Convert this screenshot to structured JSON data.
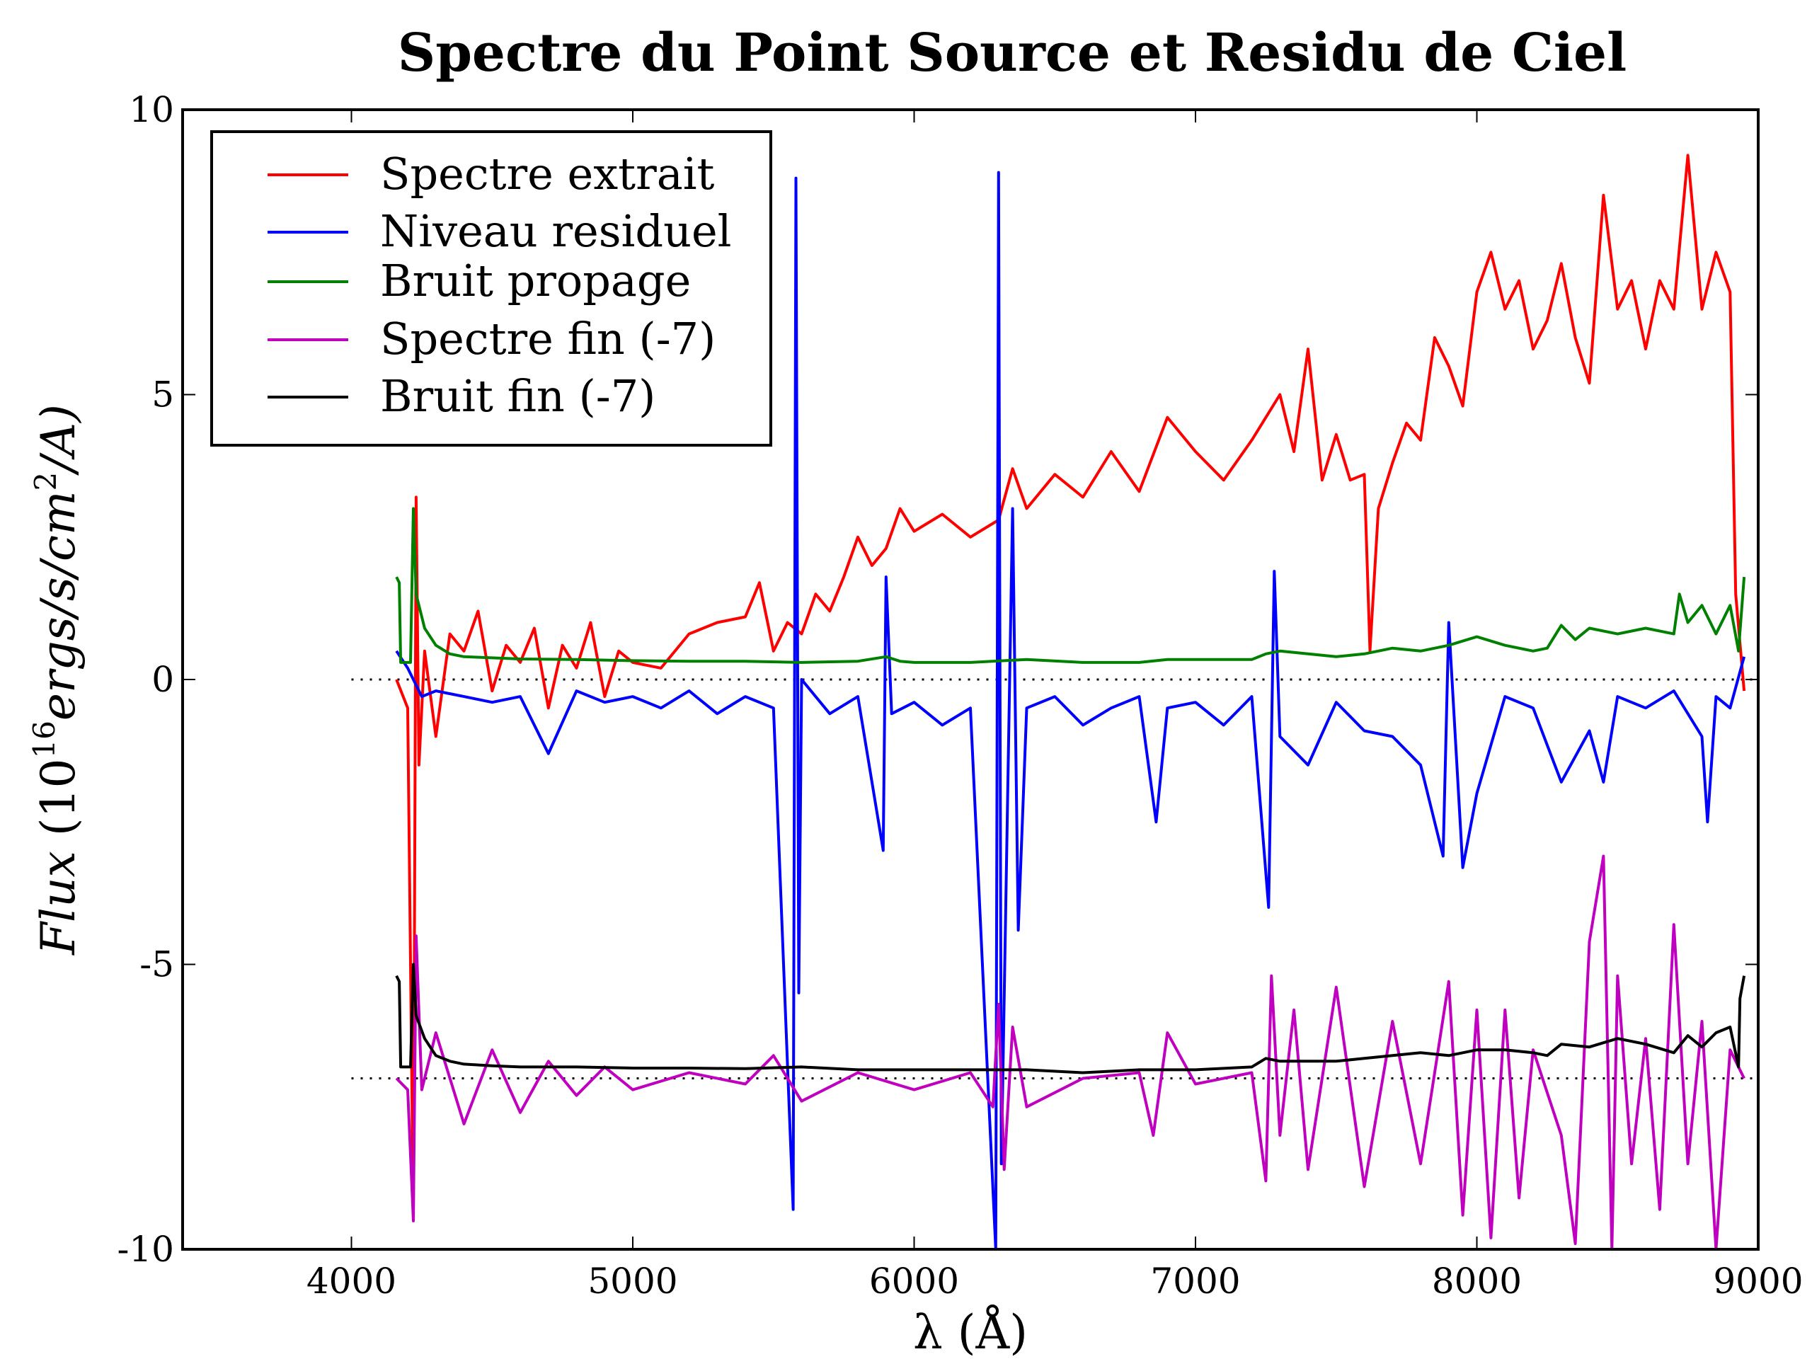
{
  "chart_data": {
    "type": "line",
    "title": "Spectre du Point Source et Residu de Ciel",
    "xlabel": "λ (Å)",
    "ylabel": "Flux (10^16 ergs/s/cm^2/A)",
    "xlim": [
      3400,
      9000
    ],
    "ylim": [
      -10,
      10
    ],
    "xticks": [
      4000,
      5000,
      6000,
      7000,
      8000,
      9000
    ],
    "yticks": [
      -10,
      -5,
      0,
      5,
      10
    ],
    "ytick_labels": [
      "-10",
      "-5",
      "0",
      "5",
      "10"
    ],
    "grid": false,
    "legend_position": "upper left",
    "reference_lines": [
      {
        "y": 0,
        "x_range": [
          4000,
          9000
        ],
        "style": "dotted",
        "color": "#000000"
      },
      {
        "y": -7,
        "x_range": [
          4000,
          9000
        ],
        "style": "dotted",
        "color": "#000000"
      }
    ],
    "series": [
      {
        "name": "Spectre extrait",
        "color": "#ff0000",
        "x": [
          4160,
          4200,
          4220,
          4230,
          4240,
          4260,
          4300,
          4350,
          4400,
          4450,
          4500,
          4550,
          4600,
          4650,
          4700,
          4750,
          4800,
          4850,
          4900,
          4950,
          5000,
          5100,
          5200,
          5300,
          5400,
          5450,
          5500,
          5550,
          5600,
          5650,
          5700,
          5750,
          5800,
          5850,
          5900,
          5950,
          6000,
          6100,
          6200,
          6300,
          6350,
          6400,
          6500,
          6600,
          6700,
          6800,
          6900,
          7000,
          7100,
          7200,
          7300,
          7350,
          7400,
          7450,
          7500,
          7550,
          7600,
          7620,
          7650,
          7700,
          7750,
          7800,
          7850,
          7900,
          7950,
          8000,
          8050,
          8100,
          8150,
          8200,
          8250,
          8300,
          8350,
          8400,
          8450,
          8500,
          8550,
          8600,
          8650,
          8700,
          8750,
          8800,
          8850,
          8900,
          8920,
          8950
        ],
        "values": [
          0,
          -0.5,
          -9.5,
          3.2,
          -1.5,
          0.5,
          -1.0,
          0.8,
          0.5,
          1.2,
          -0.2,
          0.6,
          0.3,
          0.9,
          -0.5,
          0.6,
          0.2,
          1.0,
          -0.3,
          0.5,
          0.3,
          0.2,
          0.8,
          1.0,
          1.1,
          1.7,
          0.5,
          1.0,
          0.8,
          1.5,
          1.2,
          1.8,
          2.5,
          2.0,
          2.3,
          3.0,
          2.6,
          2.9,
          2.5,
          2.8,
          3.7,
          3.0,
          3.6,
          3.2,
          4.0,
          3.3,
          4.6,
          4.0,
          3.5,
          4.2,
          5.0,
          4.0,
          5.8,
          3.5,
          4.3,
          3.5,
          3.6,
          0.5,
          3.0,
          3.8,
          4.5,
          4.2,
          6.0,
          5.5,
          4.8,
          6.8,
          7.5,
          6.5,
          7.0,
          5.8,
          6.3,
          7.3,
          6.0,
          5.2,
          8.5,
          6.5,
          7.0,
          5.8,
          7.0,
          6.5,
          9.2,
          6.5,
          7.5,
          6.8,
          1.5,
          -0.2
        ]
      },
      {
        "name": "Niveau residuel",
        "color": "#0000ff",
        "x": [
          4160,
          4200,
          4250,
          4300,
          4400,
          4500,
          4600,
          4700,
          4800,
          4900,
          5000,
          5100,
          5200,
          5300,
          5400,
          5500,
          5570,
          5580,
          5590,
          5600,
          5700,
          5800,
          5890,
          5900,
          5920,
          6000,
          6100,
          6200,
          6290,
          6300,
          6310,
          6350,
          6370,
          6400,
          6500,
          6600,
          6700,
          6800,
          6860,
          6900,
          7000,
          7100,
          7200,
          7260,
          7280,
          7300,
          7400,
          7500,
          7600,
          7700,
          7800,
          7880,
          7900,
          7950,
          8000,
          8100,
          8200,
          8300,
          8400,
          8450,
          8500,
          8600,
          8700,
          8800,
          8820,
          8850,
          8900,
          8950
        ],
        "values": [
          0.5,
          0.2,
          -0.3,
          -0.2,
          -0.3,
          -0.4,
          -0.3,
          -1.3,
          -0.2,
          -0.4,
          -0.3,
          -0.5,
          -0.2,
          -0.6,
          -0.3,
          -0.5,
          -9.3,
          8.8,
          -5.5,
          0,
          -0.6,
          -0.3,
          -3.0,
          1.8,
          -0.6,
          -0.4,
          -0.8,
          -0.5,
          -10,
          8.9,
          -8.5,
          3.0,
          -4.4,
          -0.5,
          -0.3,
          -0.8,
          -0.5,
          -0.3,
          -2.5,
          -0.5,
          -0.4,
          -0.8,
          -0.3,
          -4.0,
          1.9,
          -1.0,
          -1.5,
          -0.4,
          -0.9,
          -1.0,
          -1.5,
          -3.1,
          1.0,
          -3.3,
          -2.0,
          -0.3,
          -0.5,
          -1.8,
          -0.9,
          -1.8,
          -0.3,
          -0.5,
          -0.2,
          -1.0,
          -2.5,
          -0.3,
          -0.5,
          0.4
        ]
      },
      {
        "name": "Bruit propage",
        "color": "#008000",
        "x": [
          4160,
          4170,
          4175,
          4210,
          4220,
          4230,
          4260,
          4300,
          4350,
          4400,
          4500,
          4600,
          4800,
          5000,
          5200,
          5400,
          5600,
          5800,
          5900,
          5950,
          6000,
          6200,
          6400,
          6600,
          6800,
          6900,
          7000,
          7200,
          7250,
          7300,
          7400,
          7500,
          7600,
          7700,
          7800,
          7900,
          8000,
          8100,
          8200,
          8250,
          8300,
          8350,
          8400,
          8500,
          8600,
          8700,
          8720,
          8750,
          8800,
          8850,
          8900,
          8930,
          8950
        ],
        "values": [
          1.8,
          1.7,
          0.3,
          0.3,
          3.0,
          1.5,
          0.9,
          0.6,
          0.45,
          0.4,
          0.38,
          0.36,
          0.35,
          0.33,
          0.32,
          0.32,
          0.3,
          0.32,
          0.4,
          0.32,
          0.3,
          0.3,
          0.35,
          0.3,
          0.3,
          0.35,
          0.35,
          0.35,
          0.45,
          0.5,
          0.45,
          0.4,
          0.45,
          0.55,
          0.5,
          0.6,
          0.75,
          0.6,
          0.5,
          0.55,
          0.95,
          0.7,
          0.9,
          0.8,
          0.9,
          0.8,
          1.5,
          1.0,
          1.3,
          0.8,
          1.3,
          0.5,
          1.8
        ]
      },
      {
        "name": "Spectre fin (-7)",
        "color": "#bf00bf",
        "x": [
          4160,
          4200,
          4220,
          4230,
          4250,
          4300,
          4400,
          4500,
          4600,
          4700,
          4800,
          4900,
          5000,
          5200,
          5400,
          5500,
          5600,
          5800,
          6000,
          6200,
          6280,
          6300,
          6320,
          6350,
          6400,
          6600,
          6800,
          6850,
          6900,
          7000,
          7200,
          7250,
          7270,
          7300,
          7350,
          7400,
          7500,
          7600,
          7700,
          7800,
          7900,
          7950,
          8000,
          8050,
          8100,
          8150,
          8200,
          8300,
          8350,
          8400,
          8450,
          8480,
          8500,
          8550,
          8600,
          8650,
          8700,
          8750,
          8800,
          8850,
          8900,
          8950
        ],
        "values": [
          -7.0,
          -7.2,
          -9.5,
          -4.5,
          -7.2,
          -6.2,
          -7.8,
          -6.5,
          -7.6,
          -6.7,
          -7.3,
          -6.8,
          -7.2,
          -6.9,
          -7.1,
          -6.6,
          -7.4,
          -6.9,
          -7.2,
          -6.9,
          -7.5,
          -5.7,
          -8.6,
          -6.1,
          -7.5,
          -7.0,
          -6.9,
          -8.0,
          -6.2,
          -7.1,
          -6.9,
          -8.8,
          -5.2,
          -8.0,
          -5.8,
          -8.6,
          -5.4,
          -8.9,
          -6.0,
          -8.5,
          -5.3,
          -9.4,
          -5.8,
          -9.8,
          -5.8,
          -9.1,
          -6.5,
          -8.0,
          -9.9,
          -4.6,
          -3.1,
          -10.0,
          -5.2,
          -8.5,
          -6.3,
          -9.3,
          -4.3,
          -8.5,
          -6.0,
          -10.0,
          -6.5,
          -7.0
        ]
      },
      {
        "name": "Bruit fin (-7)",
        "color": "#000000",
        "x": [
          4160,
          4170,
          4175,
          4210,
          4220,
          4230,
          4260,
          4300,
          4350,
          4400,
          4500,
          4600,
          4800,
          5000,
          5200,
          5400,
          5600,
          5800,
          6000,
          6200,
          6400,
          6600,
          6800,
          7000,
          7200,
          7250,
          7300,
          7400,
          7500,
          7600,
          7700,
          7800,
          7900,
          8000,
          8100,
          8200,
          8250,
          8300,
          8400,
          8500,
          8600,
          8700,
          8750,
          8800,
          8850,
          8900,
          8930,
          8935,
          8950
        ],
        "values": [
          -5.2,
          -5.3,
          -6.8,
          -6.8,
          -5.0,
          -5.9,
          -6.3,
          -6.6,
          -6.7,
          -6.75,
          -6.78,
          -6.8,
          -6.8,
          -6.82,
          -6.82,
          -6.83,
          -6.8,
          -6.85,
          -6.85,
          -6.85,
          -6.85,
          -6.9,
          -6.85,
          -6.85,
          -6.8,
          -6.65,
          -6.7,
          -6.7,
          -6.7,
          -6.65,
          -6.6,
          -6.55,
          -6.6,
          -6.5,
          -6.5,
          -6.55,
          -6.6,
          -6.4,
          -6.45,
          -6.3,
          -6.4,
          -6.55,
          -6.25,
          -6.45,
          -6.2,
          -6.1,
          -6.8,
          -5.6,
          -5.2
        ]
      }
    ]
  }
}
